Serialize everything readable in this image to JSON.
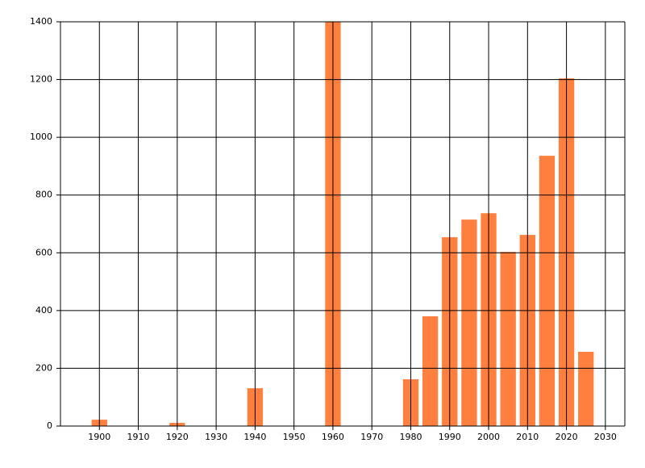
{
  "chart_data": {
    "type": "bar",
    "x": [
      1900,
      1920,
      1940,
      1960,
      1980,
      1985,
      1990,
      1995,
      2000,
      2005,
      2010,
      2015,
      2020,
      2025
    ],
    "values": [
      22,
      11,
      131,
      1400,
      162,
      380,
      654,
      715,
      737,
      603,
      662,
      936,
      1204,
      257
    ],
    "color": "#ff7f3f",
    "xlim": [
      1890,
      2035
    ],
    "xticks": [
      1900,
      1910,
      1920,
      1930,
      1940,
      1950,
      1960,
      1970,
      1980,
      1990,
      2000,
      2010,
      2020,
      2030
    ],
    "ylim": [
      0,
      1400
    ],
    "yticks": [
      0,
      200,
      400,
      600,
      800,
      1000,
      1200,
      1400
    ],
    "grid": true
  }
}
